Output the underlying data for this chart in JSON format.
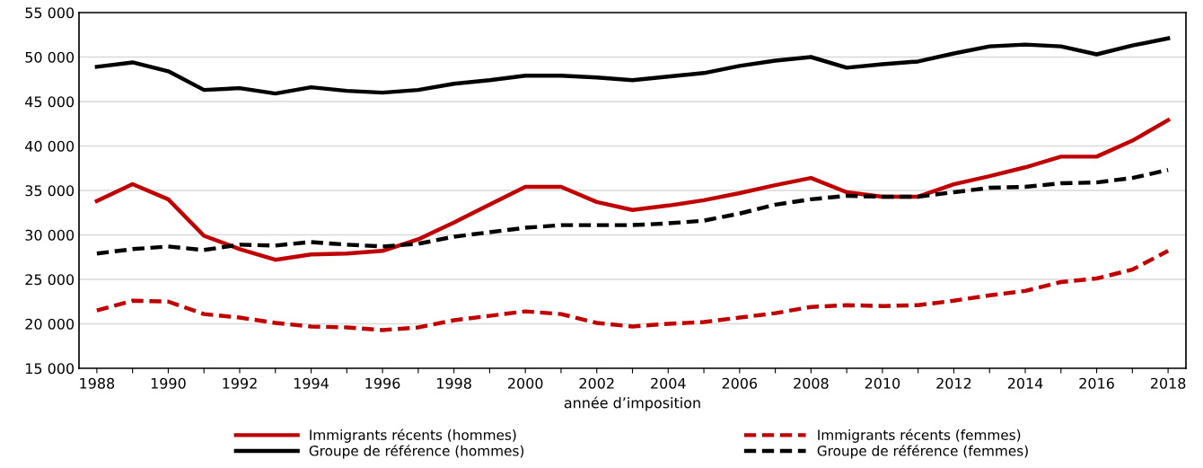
{
  "chart_data": {
    "type": "line",
    "xlabel": "année d’imposition",
    "x": [
      1988,
      1989,
      1990,
      1991,
      1992,
      1993,
      1994,
      1995,
      1996,
      1997,
      1998,
      1999,
      2000,
      2001,
      2002,
      2003,
      2004,
      2005,
      2006,
      2007,
      2008,
      2009,
      2010,
      2011,
      2012,
      2013,
      2014,
      2015,
      2016,
      2017,
      2018
    ],
    "series": [
      {
        "name": "Immigrants récents (hommes)",
        "color": "#c00000",
        "line_style": "solid",
        "values": [
          33800,
          35700,
          34000,
          29900,
          28400,
          27200,
          27800,
          27900,
          28200,
          29500,
          31400,
          33400,
          35400,
          35400,
          33700,
          32800,
          33300,
          33900,
          34700,
          35600,
          36400,
          34800,
          34300,
          34300,
          35700,
          36600,
          37600,
          38800,
          38800,
          40600,
          42900
        ]
      },
      {
        "name": "Immigrants récents (femmes)",
        "color": "#c00000",
        "line_style": "dashed",
        "values": [
          21500,
          22600,
          22500,
          21100,
          20700,
          20100,
          19700,
          19600,
          19300,
          19600,
          20400,
          20900,
          21400,
          21100,
          20100,
          19700,
          20000,
          20200,
          20700,
          21200,
          21900,
          22100,
          22000,
          22100,
          22600,
          23200,
          23700,
          24700,
          25100,
          26100,
          28200
        ]
      },
      {
        "name": "Groupe de référence (hommes)",
        "color": "#000000",
        "line_style": "solid",
        "values": [
          48900,
          49400,
          48400,
          46300,
          46500,
          45900,
          46600,
          46200,
          46000,
          46300,
          47000,
          47400,
          47900,
          47900,
          47700,
          47400,
          47800,
          48200,
          49000,
          49600,
          50000,
          48800,
          49200,
          49500,
          50400,
          51200,
          51400,
          51200,
          50300,
          51300,
          52100
        ]
      },
      {
        "name": "Groupe de référence (femmes)",
        "color": "#000000",
        "line_style": "dashed",
        "values": [
          27900,
          28400,
          28700,
          28300,
          28900,
          28800,
          29200,
          28900,
          28700,
          29000,
          29800,
          30300,
          30800,
          31100,
          31100,
          31100,
          31300,
          31600,
          32400,
          33400,
          34000,
          34400,
          34300,
          34300,
          34800,
          35300,
          35400,
          35800,
          35900,
          36400,
          37300
        ]
      }
    ],
    "xlim": [
      1987.5,
      2018.5
    ],
    "xticks": [
      1988,
      {
        "value": 1989,
        "label": null
      },
      1990,
      {
        "value": 1991,
        "label": null
      },
      1992,
      {
        "value": 1993,
        "label": null
      },
      1994,
      {
        "value": 1995,
        "label": null
      },
      1996,
      {
        "value": 1997,
        "label": null
      },
      1998,
      {
        "value": 1999,
        "label": null
      },
      2000,
      {
        "value": 2001,
        "label": null
      },
      2002,
      {
        "value": 2003,
        "label": null
      },
      2004,
      {
        "value": 2005,
        "label": null
      },
      2006,
      {
        "value": 2007,
        "label": null
      },
      2008,
      {
        "value": 2009,
        "label": null
      },
      2010,
      {
        "value": 2011,
        "label": null
      },
      2012,
      {
        "value": 2013,
        "label": null
      },
      2014,
      {
        "value": 2015,
        "label": null
      },
      2016,
      {
        "value": 2017,
        "label": null
      },
      2018
    ],
    "ylim": [
      15000,
      55000
    ],
    "yticks": [
      {
        "value": 15000,
        "label": "15 000"
      },
      {
        "value": 20000,
        "label": "20 000"
      },
      {
        "value": 25000,
        "label": "25 000"
      },
      {
        "value": 30000,
        "label": "30 000"
      },
      {
        "value": 35000,
        "label": "35 000"
      },
      {
        "value": 40000,
        "label": "40 000"
      },
      {
        "value": 45000,
        "label": "45 000"
      },
      {
        "value": 50000,
        "label": "50 000"
      },
      {
        "value": 55000,
        "label": "55 000"
      }
    ],
    "grid": "y",
    "legend": "bottom",
    "marker": "none"
  }
}
